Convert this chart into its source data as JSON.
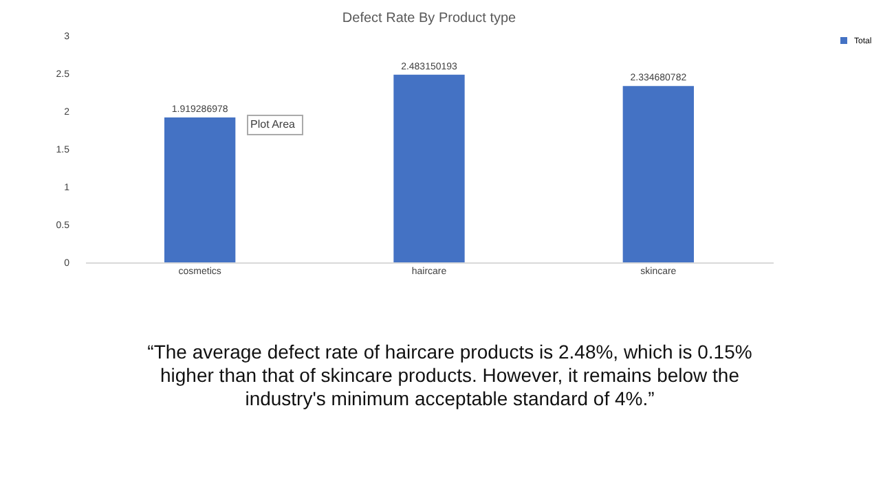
{
  "chart_data": {
    "type": "bar",
    "title": "Defect Rate By Product type",
    "categories": [
      "cosmetics",
      "haircare",
      "skincare"
    ],
    "series": [
      {
        "name": "Total",
        "color": "#4472c4",
        "values": [
          1.919286978,
          2.483150193,
          2.334680782
        ]
      }
    ],
    "ylim": [
      0,
      3
    ],
    "yticks": [
      0,
      0.5,
      1,
      1.5,
      2,
      2.5,
      3
    ],
    "grid": false,
    "legend": "right",
    "data_labels": true,
    "annotations": [
      "Plot Area",
      "“The average defect rate of haircare products is 2.48%, which is 0.15% higher than that of skincare products. However, it remains below the industry's minimum acceptable standard of 4%.”"
    ]
  }
}
